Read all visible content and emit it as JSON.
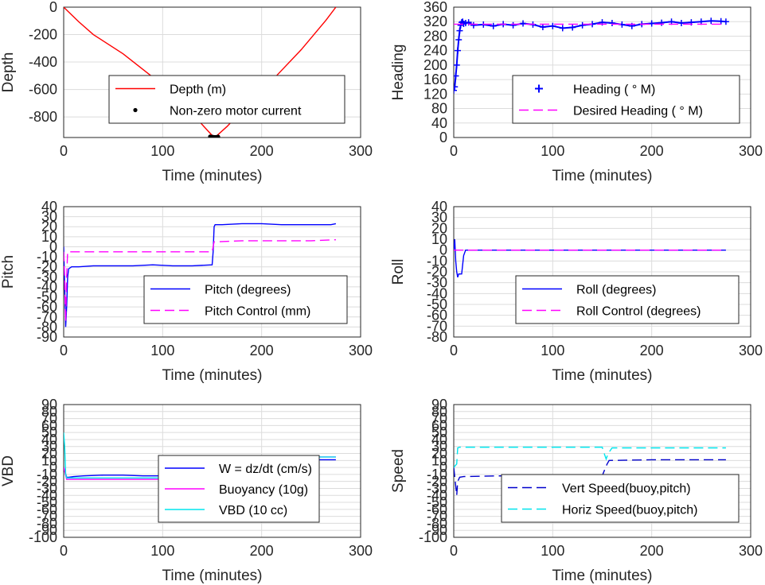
{
  "chart_data": [
    {
      "type": "line",
      "ylabel": "Depth",
      "xlabel": "Time (minutes)",
      "xlim": [
        0,
        300
      ],
      "ylim": [
        -950,
        0
      ],
      "xticks": [
        "0",
        "100",
        "200",
        "300"
      ],
      "yticks": [
        "0",
        "-200",
        "-400",
        "-600",
        "-800"
      ],
      "grid": true,
      "legend_position": "center",
      "series": [
        {
          "name": "Depth (m)",
          "color": "#ff0000",
          "style": "solid",
          "x": [
            0,
            15,
            30,
            60,
            90,
            120,
            150,
            153,
            165,
            190,
            215,
            240,
            265,
            275
          ],
          "y": [
            0,
            -105,
            -200,
            -340,
            -510,
            -700,
            -935,
            -948,
            -870,
            -680,
            -500,
            -310,
            -95,
            0
          ]
        },
        {
          "name": "Non-zero motor current",
          "color": "#000000",
          "style": "dots",
          "x": [
            148,
            150,
            151,
            152,
            153,
            154,
            155,
            156
          ],
          "y": [
            -943,
            -945,
            -946,
            -947,
            -948,
            -947,
            -946,
            -944
          ]
        }
      ]
    },
    {
      "type": "line",
      "ylabel": "Heading",
      "xlabel": "Time (minutes)",
      "xlim": [
        0,
        300
      ],
      "ylim": [
        0,
        360
      ],
      "xticks": [
        "0",
        "100",
        "200",
        "300"
      ],
      "yticks": [
        "0",
        "40",
        "80",
        "120",
        "160",
        "200",
        "240",
        "280",
        "320",
        "360"
      ],
      "grid": true,
      "legend_position": "lower-right",
      "series": [
        {
          "name": "Heading ( ° M)",
          "color": "#0000ff",
          "style": "plus",
          "x": [
            0,
            1,
            2,
            3,
            4,
            5,
            6,
            7,
            8,
            9,
            10,
            12,
            15,
            20,
            30,
            40,
            50,
            60,
            70,
            80,
            90,
            100,
            110,
            120,
            130,
            140,
            150,
            160,
            170,
            180,
            190,
            200,
            210,
            220,
            230,
            240,
            250,
            260,
            270,
            275
          ],
          "y": [
            130,
            140,
            170,
            200,
            240,
            270,
            295,
            310,
            318,
            320,
            314,
            316,
            318,
            310,
            312,
            308,
            313,
            310,
            315,
            312,
            305,
            308,
            302,
            304,
            310,
            313,
            318,
            316,
            312,
            308,
            313,
            315,
            317,
            320,
            316,
            318,
            320,
            322,
            321,
            320
          ]
        },
        {
          "name": "Desired Heading ( ° M)",
          "color": "#ff00ff",
          "style": "dash",
          "x": [
            0,
            275
          ],
          "y": [
            313,
            313
          ]
        }
      ]
    },
    {
      "type": "line",
      "ylabel": "Pitch",
      "xlabel": "Time (minutes)",
      "xlim": [
        0,
        300
      ],
      "ylim": [
        -90,
        40
      ],
      "xticks": [
        "0",
        "100",
        "200",
        "300"
      ],
      "yticks": [
        "40",
        "30",
        "20",
        "10",
        "0",
        "-10",
        "-20",
        "-30",
        "-40",
        "-50",
        "-60",
        "-70",
        "-80",
        "-90"
      ],
      "grid": true,
      "legend_position": "lower-right",
      "series": [
        {
          "name": "Pitch (degrees)",
          "color": "#0000ff",
          "style": "solid",
          "x": [
            0,
            1,
            2,
            3,
            4,
            5,
            8,
            15,
            30,
            50,
            70,
            90,
            110,
            130,
            150,
            151,
            152,
            153,
            160,
            180,
            200,
            220,
            240,
            260,
            270,
            275
          ],
          "y": [
            0,
            -40,
            -80,
            -60,
            -30,
            -22,
            -20,
            -20,
            -19,
            -19,
            -19,
            -18,
            -19,
            -19,
            -18,
            -5,
            20,
            22,
            22,
            23,
            23,
            22,
            22,
            22,
            22,
            23
          ]
        },
        {
          "name": "Pitch Control (mm)",
          "color": "#ff00ff",
          "style": "dash",
          "x": [
            0,
            1,
            2,
            3,
            4,
            5,
            150,
            151,
            152,
            155,
            180,
            200,
            250,
            275
          ],
          "y": [
            -5,
            -30,
            -75,
            -30,
            -5,
            -5,
            -5,
            0,
            5,
            5,
            6,
            6,
            6,
            7
          ]
        }
      ]
    },
    {
      "type": "line",
      "ylabel": "Roll",
      "xlabel": "Time (minutes)",
      "xlim": [
        0,
        300
      ],
      "ylim": [
        -80,
        40
      ],
      "xticks": [
        "0",
        "100",
        "200",
        "300"
      ],
      "yticks": [
        "40",
        "30",
        "20",
        "10",
        "0",
        "-10",
        "-20",
        "-30",
        "-40",
        "-50",
        "-60",
        "-70",
        "-80"
      ],
      "grid": true,
      "legend_position": "lower-right",
      "series": [
        {
          "name": "Roll (degrees)",
          "color": "#0000ff",
          "style": "solid",
          "x": [
            0,
            1,
            2,
            3,
            4,
            5,
            8,
            10,
            12,
            275
          ],
          "y": [
            0,
            10,
            -10,
            -20,
            -25,
            -22,
            -22,
            -5,
            0,
            0
          ]
        },
        {
          "name": "Roll Control (degrees)",
          "color": "#ff00ff",
          "style": "dash",
          "x": [
            0,
            275
          ],
          "y": [
            0,
            0
          ]
        }
      ]
    },
    {
      "type": "line",
      "ylabel": "VBD",
      "xlabel": "Time (minutes)",
      "xlim": [
        0,
        300
      ],
      "ylim": [
        -100,
        90
      ],
      "xticks": [
        "0",
        "100",
        "200",
        "300"
      ],
      "yticks": [
        "90",
        "80",
        "70",
        "60",
        "50",
        "40",
        "30",
        "20",
        "10",
        "0",
        "-10",
        "-20",
        "-30",
        "-40",
        "-50",
        "-60",
        "-70",
        "-80",
        "-90",
        "-100"
      ],
      "grid": true,
      "legend_position": "lower-right",
      "series": [
        {
          "name": "W = dz/dt (cm/s)",
          "color": "#0000ff",
          "style": "solid",
          "x": [
            0,
            3,
            5,
            10,
            20,
            40,
            60,
            80,
            100,
            120,
            140,
            150,
            153,
            156,
            170,
            200,
            230,
            260,
            275
          ],
          "y": [
            0,
            -14,
            -14,
            -13,
            -12,
            -11,
            -11,
            -12,
            -12,
            -12,
            -12,
            -11,
            0,
            10,
            11,
            11,
            11,
            11,
            11
          ]
        },
        {
          "name": "Buoyancy (10g)",
          "color": "#ff00ff",
          "style": "solid",
          "x": [
            0,
            3,
            150,
            153,
            155,
            275
          ],
          "y": [
            0,
            -17,
            -17,
            0,
            15,
            15
          ]
        },
        {
          "name": "VBD (10 cc)",
          "color": "#00e5ee",
          "style": "solid",
          "x": [
            0,
            1,
            2,
            3,
            150,
            152,
            154,
            155,
            275
          ],
          "y": [
            50,
            30,
            -10,
            -15,
            -15,
            -10,
            10,
            15,
            15
          ]
        }
      ]
    },
    {
      "type": "line",
      "ylabel": "Speed",
      "xlabel": "Time (minutes)",
      "xlim": [
        0,
        300
      ],
      "ylim": [
        -100,
        90
      ],
      "xticks": [
        "0",
        "100",
        "200",
        "300"
      ],
      "yticks": [
        "90",
        "80",
        "70",
        "60",
        "50",
        "40",
        "30",
        "20",
        "10",
        "0",
        "-10",
        "-20",
        "-30",
        "-40",
        "-50",
        "-60",
        "-70",
        "-80",
        "-90",
        "-100"
      ],
      "grid": true,
      "legend_position": "lower-right",
      "series": [
        {
          "name": "Vert Speed(buoy,pitch)",
          "color": "#0000cc",
          "style": "dash",
          "x": [
            0,
            3,
            4,
            6,
            10,
            50,
            100,
            150,
            152,
            155,
            157,
            200,
            250,
            275
          ],
          "y": [
            0,
            -40,
            -20,
            -14,
            -13,
            -12,
            -12,
            -12,
            -5,
            5,
            10,
            11,
            11,
            11
          ]
        },
        {
          "name": "Horiz Speed(buoy,pitch)",
          "color": "#00e5ee",
          "style": "dash",
          "x": [
            0,
            3,
            4,
            6,
            50,
            100,
            150,
            152,
            154,
            156,
            160,
            200,
            250,
            275
          ],
          "y": [
            0,
            5,
            28,
            29,
            29,
            29,
            29,
            20,
            12,
            20,
            28,
            28,
            28,
            28
          ]
        }
      ]
    }
  ]
}
